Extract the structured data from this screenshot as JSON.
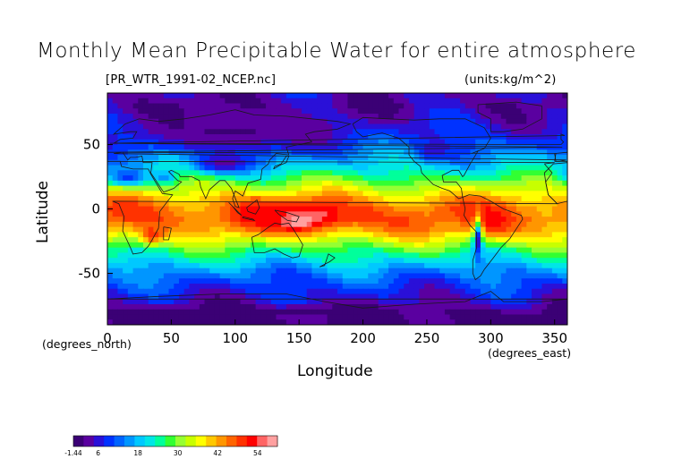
{
  "figure": {
    "title": "Monthly Mean Precipitable Water for entire atmosphere",
    "subtitle": "[PR_WTR_1991-02_NCEP.nc]",
    "units": "(units:kg/m^2)",
    "xlabel": "Longitude",
    "ylabel": "Latitude",
    "x_unit_note": "(degrees_east)",
    "y_unit_note": "(degrees_north)"
  },
  "chart_data": {
    "type": "heatmap",
    "title": "Monthly Mean Precipitable Water for entire atmosphere",
    "xlabel": "Longitude",
    "ylabel": "Latitude",
    "xlim": [
      0,
      360
    ],
    "ylim": [
      -90,
      90
    ],
    "x_ticks": [
      0,
      50,
      100,
      150,
      200,
      250,
      300,
      350
    ],
    "y_ticks": [
      50,
      0,
      -50
    ],
    "colorbar": {
      "ticks": [
        -1.44,
        6,
        18,
        30,
        42,
        54
      ],
      "range": [
        -1.44,
        60
      ],
      "palette": [
        "#3b0075",
        "#5a00a0",
        "#2a10d8",
        "#0032ff",
        "#0064ff",
        "#0096ff",
        "#00c8ff",
        "#00e6e6",
        "#00ff9b",
        "#32ff32",
        "#96ff32",
        "#c8ff00",
        "#ffff00",
        "#ffc800",
        "#ff9600",
        "#ff6400",
        "#ff3200",
        "#ff0000",
        "#ff6464",
        "#ffa0a0"
      ]
    },
    "bands": [
      {
        "lat": 88,
        "value": 4
      },
      {
        "lat": 80,
        "value": 3
      },
      {
        "lat": 72,
        "value": 5
      },
      {
        "lat": 64,
        "value": 7
      },
      {
        "lat": 56,
        "value": 9
      },
      {
        "lat": 48,
        "value": 12
      },
      {
        "lat": 40,
        "value": 16
      },
      {
        "lat": 32,
        "value": 21
      },
      {
        "lat": 24,
        "value": 27
      },
      {
        "lat": 16,
        "value": 34
      },
      {
        "lat": 8,
        "value": 41
      },
      {
        "lat": 0,
        "value": 46
      },
      {
        "lat": -8,
        "value": 47
      },
      {
        "lat": -16,
        "value": 43
      },
      {
        "lat": -24,
        "value": 35
      },
      {
        "lat": -32,
        "value": 27
      },
      {
        "lat": -40,
        "value": 21
      },
      {
        "lat": -48,
        "value": 15
      },
      {
        "lat": -56,
        "value": 11
      },
      {
        "lat": -64,
        "value": 8
      },
      {
        "lat": -72,
        "value": 5
      },
      {
        "lat": -80,
        "value": 1
      },
      {
        "lat": -88,
        "value": 0
      }
    ],
    "features": [
      {
        "lon": 155,
        "lat": -5,
        "rlon": 40,
        "rlat": 12,
        "value": 56
      },
      {
        "lon": 150,
        "lat": -10,
        "rlon": 12,
        "rlat": 6,
        "value": 60
      },
      {
        "lon": 120,
        "lat": -3,
        "rlon": 25,
        "rlat": 10,
        "value": 52
      },
      {
        "lon": 300,
        "lat": -10,
        "rlon": 18,
        "rlat": 12,
        "value": 52
      },
      {
        "lon": 290,
        "lat": -25,
        "rlon": 4,
        "rlat": 18,
        "value": 6
      },
      {
        "lon": 35,
        "lat": -20,
        "rlon": 10,
        "rlat": 8,
        "value": 50
      },
      {
        "lon": 90,
        "lat": 35,
        "rlon": 25,
        "rlat": 8,
        "value": 3
      },
      {
        "lon": 100,
        "lat": 60,
        "rlon": 80,
        "rlat": 18,
        "value": 1
      },
      {
        "lon": 255,
        "lat": 45,
        "rlon": 15,
        "rlat": 8,
        "value": 6
      },
      {
        "lon": 15,
        "lat": 25,
        "rlon": 20,
        "rlat": 8,
        "value": 10
      },
      {
        "lon": 45,
        "lat": 25,
        "rlon": 10,
        "rlat": 6,
        "value": 14
      },
      {
        "lon": 40,
        "lat": -80,
        "rlon": 30,
        "rlat": 5,
        "value": -1
      },
      {
        "lon": 150,
        "lat": -80,
        "rlon": 25,
        "rlat": 5,
        "value": -1
      },
      {
        "lon": 300,
        "lat": -85,
        "rlon": 30,
        "rlat": 4,
        "value": -1
      }
    ]
  }
}
